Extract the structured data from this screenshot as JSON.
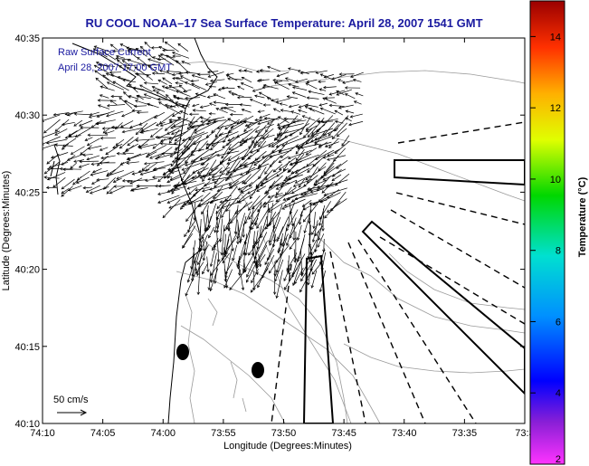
{
  "chart_data": {
    "type": "map",
    "title": "RU COOL  NOAA–17  Sea Surface Temperature:  April 28, 2007 1541 GMT",
    "xlabel": "Longitude (Degrees:Minutes)",
    "ylabel": "Latitude (Degrees:Minutes)",
    "x_ticks": [
      "74:10",
      "74:05",
      "74:00",
      "73:55",
      "73:50",
      "73:45",
      "73:40",
      "73:35",
      "73:3"
    ],
    "y_ticks": [
      "40:35",
      "40:30",
      "40:25",
      "40:20",
      "40:15",
      "40:10"
    ],
    "xlim_minutes_west": [
      70,
      30
    ],
    "ylim_minutes_north": [
      10,
      35
    ],
    "annotations": {
      "line1": "Raw Surface Current",
      "line2": "April 28, 2007 17:00 GMT",
      "scale": "50 cm/s"
    },
    "colorbar": {
      "label": "Temperature (°C)",
      "ticks": [
        "14",
        "12",
        "10",
        "8",
        "6",
        "4",
        "2"
      ],
      "range": [
        2,
        15
      ]
    },
    "markers": [
      {
        "lon_min_w": 59.0,
        "lat_min_n": 14.6
      },
      {
        "lon_min_w": 52.4,
        "lat_min_n": 13.5
      }
    ]
  }
}
